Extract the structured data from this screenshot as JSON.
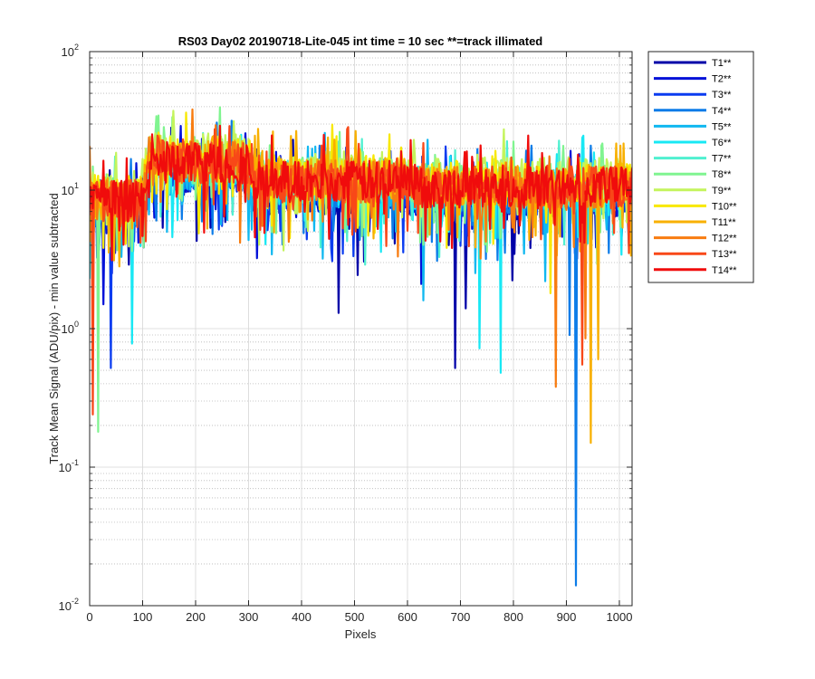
{
  "chart_data": {
    "type": "line",
    "title": "RS03 Day02 20190718-Lite-045 int time = 10 sec    **=track illimated",
    "xlabel": "Pixels",
    "ylabel": "Track Mean Signal (ADU/pix) - min value subtracted",
    "xlim": [
      0,
      1024
    ],
    "ylim": [
      0.01,
      100
    ],
    "yscale": "log",
    "grid": "major+minor",
    "legend_position": "outside-top-right",
    "x_ticks": [
      "0",
      "100",
      "200",
      "300",
      "400",
      "500",
      "600",
      "700",
      "800",
      "900",
      "1000"
    ],
    "y_ticks": [
      {
        "value": 0.01,
        "base": "10",
        "exp": "-2"
      },
      {
        "value": 0.1,
        "base": "10",
        "exp": "-1"
      },
      {
        "value": 1,
        "base": "10",
        "exp": "0"
      },
      {
        "value": 10,
        "base": "10",
        "exp": "1"
      },
      {
        "value": 100,
        "base": "10",
        "exp": "2"
      }
    ],
    "profile_segments": [
      {
        "x_start": 0,
        "x_end": 100,
        "approx_mean_signal": 8
      },
      {
        "x_start": 100,
        "x_end": 130,
        "approx_mean_signal": 17
      },
      {
        "x_start": 130,
        "x_end": 300,
        "approx_mean_signal": 15
      },
      {
        "x_start": 300,
        "x_end": 600,
        "approx_mean_signal": 11
      },
      {
        "x_start": 600,
        "x_end": 1024,
        "approx_mean_signal": 10
      }
    ],
    "series": [
      {
        "name": "T1**",
        "color": "#0000a8",
        "level": 0.85,
        "dips": [
          [
            470,
            1.3
          ],
          [
            690,
            0.52
          ],
          [
            710,
            1.4
          ]
        ]
      },
      {
        "name": "T2**",
        "color": "#0010d8",
        "level": 0.9,
        "dips": [
          [
            25,
            1.5
          ],
          [
            625,
            2.1
          ]
        ]
      },
      {
        "name": "T3**",
        "color": "#0a3cf0",
        "level": 0.92,
        "dips": [
          [
            40,
            0.52
          ],
          [
            250,
            5.5
          ]
        ]
      },
      {
        "name": "T4**",
        "color": "#0c7ce8",
        "level": 0.95,
        "dips": [
          [
            918,
            0.014
          ],
          [
            905,
            0.9
          ]
        ]
      },
      {
        "name": "T5**",
        "color": "#10b8f0",
        "level": 0.95,
        "dips": [
          [
            630,
            1.6
          ],
          [
            860,
            2.2
          ]
        ]
      },
      {
        "name": "T6**",
        "color": "#18e8f4",
        "level": 1.0,
        "dips": [
          [
            80,
            0.78
          ],
          [
            775,
            0.48
          ],
          [
            735,
            0.72
          ]
        ]
      },
      {
        "name": "T7**",
        "color": "#50f0d0",
        "level": 1.05,
        "dips": [
          [
            520,
            2.9
          ]
        ]
      },
      {
        "name": "T8**",
        "color": "#80f490",
        "level": 1.12,
        "dips": [
          [
            15,
            0.18
          ]
        ]
      },
      {
        "name": "T9**",
        "color": "#c4f45c",
        "level": 1.22,
        "dips": []
      },
      {
        "name": "T10**",
        "color": "#f8e800",
        "level": 1.15,
        "dips": [
          [
            870,
            1.8
          ]
        ]
      },
      {
        "name": "T11**",
        "color": "#f8b000",
        "level": 1.1,
        "dips": [
          [
            945,
            0.15
          ],
          [
            960,
            0.6
          ]
        ]
      },
      {
        "name": "T12**",
        "color": "#f87c10",
        "level": 1.05,
        "dips": [
          [
            880,
            0.38
          ],
          [
            935,
            0.85
          ]
        ]
      },
      {
        "name": "T13**",
        "color": "#f84818",
        "level": 1.05,
        "dips": [
          [
            5,
            0.24
          ],
          [
            930,
            0.55
          ]
        ]
      },
      {
        "name": "T14**",
        "color": "#f00c0c",
        "level": 1.05,
        "dips": [
          [
            605,
            23
          ]
        ]
      }
    ]
  }
}
